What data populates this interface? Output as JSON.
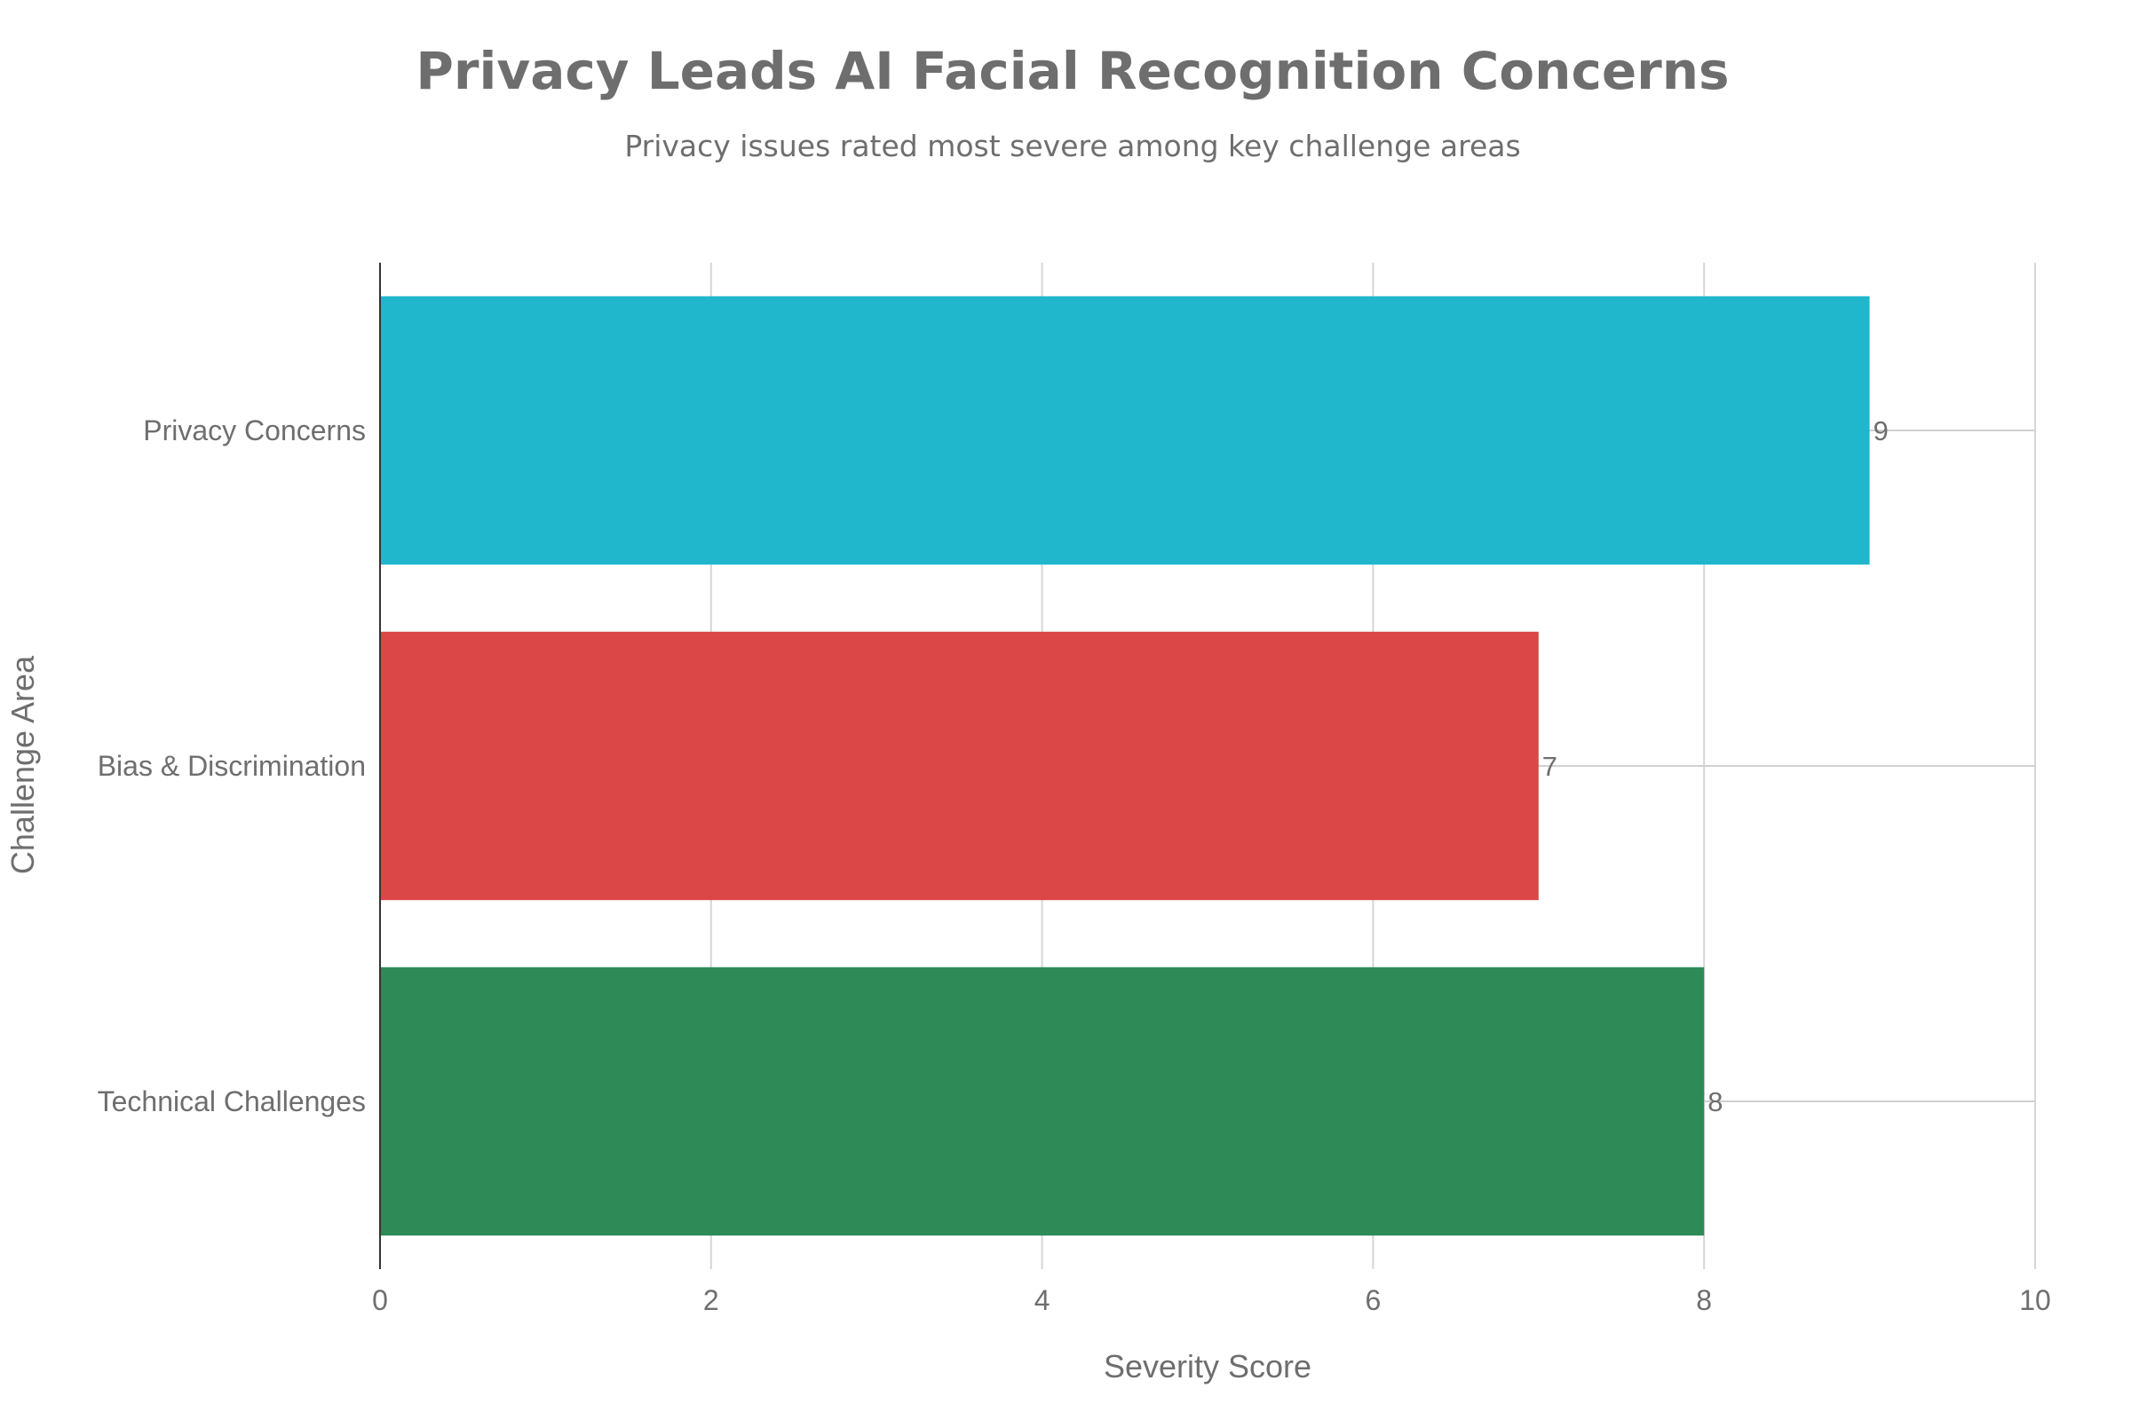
{
  "chart_data": {
    "type": "bar",
    "orientation": "horizontal",
    "title": "Privacy Leads AI Facial Recognition Concerns",
    "subtitle": "Privacy issues rated most severe among key challenge areas",
    "xlabel": "Severity Score",
    "ylabel": "Challenge Area",
    "categories": [
      "Privacy Concerns",
      "Bias & Discrimination",
      "Technical Challenges"
    ],
    "values": [
      9,
      7,
      8
    ],
    "data_labels": [
      "9",
      "7",
      "8"
    ],
    "colors": [
      "#20b7cd",
      "#db4646",
      "#2e8b57"
    ],
    "xlim": [
      0,
      10
    ],
    "xticks": [
      0,
      2,
      4,
      6,
      8,
      10
    ],
    "xtick_labels": [
      "0",
      "2",
      "4",
      "6",
      "8",
      "10"
    ],
    "grid": true,
    "legend": "none"
  }
}
